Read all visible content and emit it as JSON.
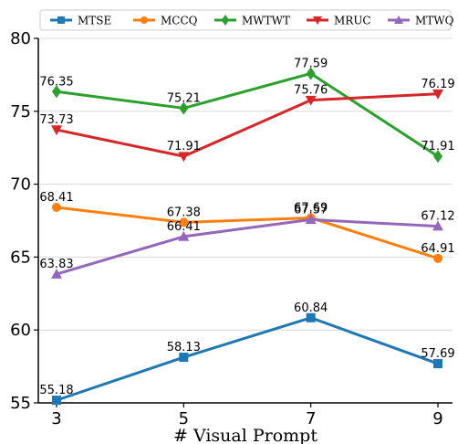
{
  "chart_data": {
    "type": "line",
    "x": [
      3,
      5,
      7,
      9
    ],
    "xlabel": "# Visual Prompt",
    "ylabel": "",
    "ylim": [
      55,
      80
    ],
    "yticks": [
      55,
      60,
      65,
      70,
      75,
      80
    ],
    "grid": "horizontal",
    "legend_position": "top",
    "series": [
      {
        "name": "MTSE",
        "values": [
          55.18,
          58.13,
          60.84,
          57.69
        ],
        "labels": [
          "55.18",
          "58.13",
          "60.84",
          "57.69"
        ],
        "color": "#1f77b4",
        "marker": "square"
      },
      {
        "name": "MCCQ",
        "values": [
          68.41,
          67.38,
          67.69,
          64.91
        ],
        "labels": [
          "68.41",
          "67.38",
          "67.69",
          "64.91"
        ],
        "color": "#ff7f0e",
        "marker": "circle"
      },
      {
        "name": "MWTWT",
        "values": [
          76.35,
          75.21,
          77.59,
          71.91
        ],
        "labels": [
          "76.35",
          "75.21",
          "77.59",
          "71.91"
        ],
        "color": "#2ca02c",
        "marker": "diamond"
      },
      {
        "name": "MRUC",
        "values": [
          73.73,
          71.91,
          75.76,
          76.19
        ],
        "labels": [
          "73.73",
          "71.91",
          "75.76",
          "76.19"
        ],
        "color": "#d62728",
        "marker": "triangle-down"
      },
      {
        "name": "MTWQ",
        "values": [
          63.83,
          66.41,
          67.57,
          67.12
        ],
        "labels": [
          "63.83",
          "66.41",
          "67.57",
          "67.12"
        ],
        "color": "#9467bd",
        "marker": "triangle-up"
      }
    ]
  }
}
